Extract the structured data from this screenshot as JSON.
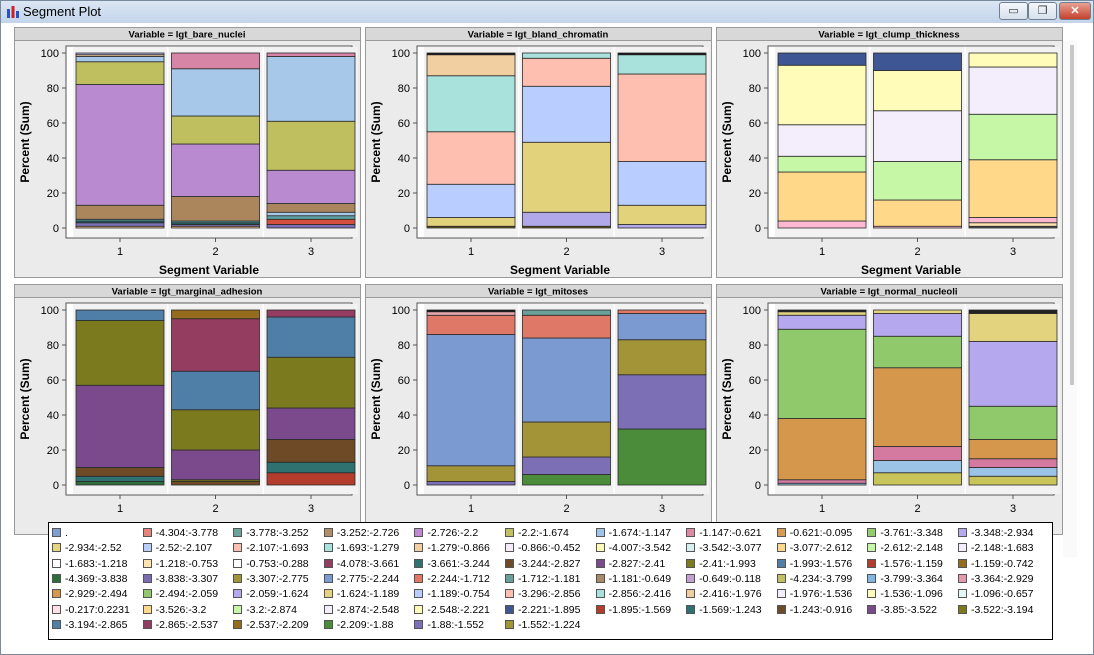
{
  "window": {
    "title": "Segment Plot",
    "buttons": {
      "minimize": "▭",
      "maximize": "❐",
      "close": "✕"
    }
  },
  "chart_data": [
    {
      "type": "bar",
      "stacked": true,
      "title": "Variable = lgt_bare_nuclei",
      "xlabel": "Segment Variable",
      "ylabel": "Percent (Sum)",
      "categories": [
        "1",
        "2",
        "3"
      ],
      "ylim": [
        0,
        100
      ],
      "yticks": [
        0,
        20,
        40,
        60,
        80,
        100
      ],
      "segments": [
        [
          {
            "to": 1,
            "color": "#e7ba8a"
          },
          {
            "to": 3,
            "color": "#7c6fb5"
          },
          {
            "to": 4,
            "color": "#1f6b6b"
          },
          {
            "to": 5,
            "color": "#5da3a6"
          },
          {
            "to": 13,
            "color": "#ab865c"
          },
          {
            "to": 82,
            "color": "#b98acf"
          },
          {
            "to": 95,
            "color": "#bfbf5f"
          },
          {
            "to": 98,
            "color": "#a7c8e8"
          },
          {
            "to": 99,
            "color": "#f0cfa0"
          },
          {
            "to": 100,
            "color": "#b3b3e0"
          }
        ],
        [
          {
            "to": 1,
            "color": "#e7ba8a"
          },
          {
            "to": 2,
            "color": "#7c6fb5"
          },
          {
            "to": 3,
            "color": "#1f6b6b"
          },
          {
            "to": 4,
            "color": "#5da3a6"
          },
          {
            "to": 18,
            "color": "#ab865c"
          },
          {
            "to": 48,
            "color": "#b98acf"
          },
          {
            "to": 64,
            "color": "#bfbf5f"
          },
          {
            "to": 91,
            "color": "#a7c8e8"
          },
          {
            "to": 100,
            "color": "#d785a6"
          }
        ],
        [
          {
            "to": 2,
            "color": "#7c6fb5"
          },
          {
            "to": 5,
            "color": "#d64f3e"
          },
          {
            "to": 7,
            "color": "#5da3a6"
          },
          {
            "to": 9,
            "color": "#a7c8e8"
          },
          {
            "to": 14,
            "color": "#ab865c"
          },
          {
            "to": 33,
            "color": "#b98acf"
          },
          {
            "to": 61,
            "color": "#bfbf5f"
          },
          {
            "to": 98,
            "color": "#a7c8e8"
          },
          {
            "to": 100,
            "color": "#d785a6"
          }
        ]
      ]
    },
    {
      "type": "bar",
      "stacked": true,
      "title": "Variable = lgt_bland_chromatin",
      "xlabel": "Segment Variable",
      "ylabel": "Percent (Sum)",
      "categories": [
        "1",
        "2",
        "3"
      ],
      "ylim": [
        0,
        100
      ],
      "yticks": [
        0,
        20,
        40,
        60,
        80,
        100
      ],
      "segments": [
        [
          {
            "to": 1,
            "color": "#6a5a1a"
          },
          {
            "to": 6,
            "color": "#e2d27c"
          },
          {
            "to": 25,
            "color": "#b9ceff"
          },
          {
            "to": 55,
            "color": "#ffbfb0"
          },
          {
            "to": 87,
            "color": "#a9e2dd"
          },
          {
            "to": 99,
            "color": "#f1cfa0"
          },
          {
            "to": 100,
            "color": "#111111"
          }
        ],
        [
          {
            "to": 1,
            "color": "#6a5a1a"
          },
          {
            "to": 9,
            "color": "#b0a8e8"
          },
          {
            "to": 49,
            "color": "#e2d27c"
          },
          {
            "to": 81,
            "color": "#b9ceff"
          },
          {
            "to": 97,
            "color": "#ffbfb0"
          },
          {
            "to": 100,
            "color": "#a9e2dd"
          }
        ],
        [
          {
            "to": 2,
            "color": "#b0a8e8"
          },
          {
            "to": 13,
            "color": "#e2d27c"
          },
          {
            "to": 38,
            "color": "#b9ceff"
          },
          {
            "to": 88,
            "color": "#ffbfb0"
          },
          {
            "to": 99,
            "color": "#a9e2dd"
          },
          {
            "to": 100,
            "color": "#111111"
          }
        ]
      ]
    },
    {
      "type": "bar",
      "stacked": true,
      "title": "Variable = lgt_clump_thickness",
      "xlabel": "Segment Variable",
      "ylabel": "Percent (Sum)",
      "categories": [
        "1",
        "2",
        "3"
      ],
      "ylim": [
        0,
        100
      ],
      "yticks": [
        0,
        20,
        40,
        60,
        80,
        100
      ],
      "segments": [
        [
          {
            "to": 4,
            "color": "#ffb8d2"
          },
          {
            "to": 32,
            "color": "#ffd88a"
          },
          {
            "to": 41,
            "color": "#c6f7a7"
          },
          {
            "to": 59,
            "color": "#f4eefc"
          },
          {
            "to": 93,
            "color": "#fffbb8"
          },
          {
            "to": 100,
            "color": "#3e5694"
          }
        ],
        [
          {
            "to": 1,
            "color": "#ffb8d2"
          },
          {
            "to": 16,
            "color": "#ffd88a"
          },
          {
            "to": 38,
            "color": "#c6f7a7"
          },
          {
            "to": 67,
            "color": "#f4eefc"
          },
          {
            "to": 90,
            "color": "#fffbb8"
          },
          {
            "to": 100,
            "color": "#3e5694"
          }
        ],
        [
          {
            "to": 1,
            "color": "#555555"
          },
          {
            "to": 3,
            "color": "#ffe4b0"
          },
          {
            "to": 6,
            "color": "#ffb8d2"
          },
          {
            "to": 39,
            "color": "#ffd88a"
          },
          {
            "to": 65,
            "color": "#c6f7a7"
          },
          {
            "to": 92,
            "color": "#f4eefc"
          },
          {
            "to": 100,
            "color": "#fffbb8"
          }
        ]
      ]
    },
    {
      "type": "bar",
      "stacked": true,
      "title": "Variable = lgt_marginal_adhesion",
      "xlabel": "Segment Variable",
      "ylabel": "Percent (Sum)",
      "categories": [
        "1",
        "2",
        "3"
      ],
      "ylim": [
        0,
        100
      ],
      "yticks": [
        0,
        20,
        40,
        60,
        80,
        100
      ],
      "segments": [
        [
          {
            "to": 2,
            "color": "#2d6e3c"
          },
          {
            "to": 5,
            "color": "#2f7070"
          },
          {
            "to": 10,
            "color": "#6e4a26"
          },
          {
            "to": 57,
            "color": "#7b4a8c"
          },
          {
            "to": 94,
            "color": "#7c7a1e"
          },
          {
            "to": 100,
            "color": "#4f7ea6"
          }
        ],
        [
          {
            "to": 2,
            "color": "#6e4a26"
          },
          {
            "to": 3,
            "color": "#7c7a1e"
          },
          {
            "to": 20,
            "color": "#7b4a8c"
          },
          {
            "to": 43,
            "color": "#7c7a1e"
          },
          {
            "to": 65,
            "color": "#4f7ea6"
          },
          {
            "to": 95,
            "color": "#953d60"
          },
          {
            "to": 100,
            "color": "#956b1d"
          }
        ],
        [
          {
            "to": 7,
            "color": "#b33c2c"
          },
          {
            "to": 13,
            "color": "#2f7070"
          },
          {
            "to": 26,
            "color": "#6e4a26"
          },
          {
            "to": 44,
            "color": "#7b4a8c"
          },
          {
            "to": 73,
            "color": "#7c7a1e"
          },
          {
            "to": 96,
            "color": "#4f7ea6"
          },
          {
            "to": 100,
            "color": "#953d60"
          }
        ]
      ]
    },
    {
      "type": "bar",
      "stacked": true,
      "title": "Variable = lgt_mitoses",
      "xlabel": "Segment Variable",
      "ylabel": "Percent (Sum)",
      "categories": [
        "1",
        "2",
        "3"
      ],
      "ylim": [
        0,
        100
      ],
      "yticks": [
        0,
        20,
        40,
        60,
        80,
        100
      ],
      "segments": [
        [
          {
            "to": 2,
            "color": "#7c6fb5"
          },
          {
            "to": 11,
            "color": "#a39438"
          },
          {
            "to": 86,
            "color": "#7c9ad2"
          },
          {
            "to": 97,
            "color": "#e07868"
          },
          {
            "to": 99,
            "color": "#e8a8b0"
          },
          {
            "to": 100,
            "color": "#111111"
          }
        ],
        [
          {
            "to": 6,
            "color": "#4a8c3a"
          },
          {
            "to": 16,
            "color": "#7c6fb5"
          },
          {
            "to": 36,
            "color": "#a39438"
          },
          {
            "to": 84,
            "color": "#7c9ad2"
          },
          {
            "to": 97,
            "color": "#e07868"
          },
          {
            "to": 100,
            "color": "#6aa09a"
          }
        ],
        [
          {
            "to": 32,
            "color": "#4a8c3a"
          },
          {
            "to": 63,
            "color": "#7c6fb5"
          },
          {
            "to": 83,
            "color": "#a39438"
          },
          {
            "to": 98,
            "color": "#7c9ad2"
          },
          {
            "to": 100,
            "color": "#e07868"
          }
        ]
      ]
    },
    {
      "type": "bar",
      "stacked": true,
      "title": "Variable = lgt_normal_nucleoli",
      "xlabel": "Segment Variable",
      "ylabel": "Percent (Sum)",
      "categories": [
        "1",
        "2",
        "3"
      ],
      "ylim": [
        0,
        100
      ],
      "yticks": [
        0,
        20,
        40,
        60,
        80,
        100
      ],
      "segments": [
        [
          {
            "to": 1,
            "color": "#9bc3e6"
          },
          {
            "to": 3,
            "color": "#d47aa0"
          },
          {
            "to": 38,
            "color": "#d5974b"
          },
          {
            "to": 89,
            "color": "#8fc96b"
          },
          {
            "to": 97,
            "color": "#b5a8ef"
          },
          {
            "to": 99,
            "color": "#e3d27e"
          },
          {
            "to": 100,
            "color": "#222222"
          }
        ],
        [
          {
            "to": 7,
            "color": "#c8c45a"
          },
          {
            "to": 14,
            "color": "#9bc3e6"
          },
          {
            "to": 22,
            "color": "#d47aa0"
          },
          {
            "to": 67,
            "color": "#d5974b"
          },
          {
            "to": 85,
            "color": "#8fc96b"
          },
          {
            "to": 98,
            "color": "#b5a8ef"
          },
          {
            "to": 100,
            "color": "#e3d27e"
          }
        ],
        [
          {
            "to": 5,
            "color": "#c8c45a"
          },
          {
            "to": 10,
            "color": "#9bc3e6"
          },
          {
            "to": 15,
            "color": "#d47aa0"
          },
          {
            "to": 26,
            "color": "#d5974b"
          },
          {
            "to": 45,
            "color": "#8fc96b"
          },
          {
            "to": 82,
            "color": "#b5a8ef"
          },
          {
            "to": 98,
            "color": "#e3d27e"
          },
          {
            "to": 100,
            "color": "#222222"
          }
        ]
      ]
    }
  ],
  "legend": {
    "items": [
      {
        "label": ".",
        "color": "#7f9fd2"
      },
      {
        "label": "-4.304:-3.778",
        "color": "#e7857a"
      },
      {
        "label": "-3.778:-3.252",
        "color": "#6aa39e"
      },
      {
        "label": "-3.252:-2.726",
        "color": "#b18e6b"
      },
      {
        "label": "-2.726:-2.2",
        "color": "#c08ad3"
      },
      {
        "label": "-2.2:-1.674",
        "color": "#c3c064"
      },
      {
        "label": "-1.674:-1.147",
        "color": "#a0c4e9"
      },
      {
        "label": "-1.147:-0.621",
        "color": "#dd8aa4"
      },
      {
        "label": "-0.621:-0.095",
        "color": "#d89b4f"
      },
      {
        "label": "-3.761:-3.348",
        "color": "#93cd6f"
      },
      {
        "label": "-3.348:-2.934",
        "color": "#b7abf0"
      },
      {
        "label": "-2.934:-2.52",
        "color": "#e6d580"
      },
      {
        "label": "-2.52:-2.107",
        "color": "#b9ceff"
      },
      {
        "label": "-2.107:-1.693",
        "color": "#ffbfb0"
      },
      {
        "label": "-1.693:-1.279",
        "color": "#a9e2dd"
      },
      {
        "label": "-1.279:-0.866",
        "color": "#f1cfa0"
      },
      {
        "label": "-0.866:-0.452",
        "color": "#f7eafa"
      },
      {
        "label": "-4.007:-3.542",
        "color": "#fffbb8"
      },
      {
        "label": "-3.542:-3.077",
        "color": "#d5f0f0"
      },
      {
        "label": "-3.077:-2.612",
        "color": "#ffd88a"
      },
      {
        "label": "-2.612:-2.148",
        "color": "#c6f7a7"
      },
      {
        "label": "-2.148:-1.683",
        "color": "#f4eefc"
      },
      {
        "label": "-1.683:-1.218",
        "color": "#ffffff"
      },
      {
        "label": "-1.218:-0.753",
        "color": "#ffe4b0"
      },
      {
        "label": "-0.753:-0.288",
        "color": "#ffffff"
      },
      {
        "label": "-4.078:-3.661",
        "color": "#953d60"
      },
      {
        "label": "-3.661:-3.244",
        "color": "#2f7070"
      },
      {
        "label": "-3.244:-2.827",
        "color": "#6e4a26"
      },
      {
        "label": "-2.827:-2.41",
        "color": "#7b4a8c"
      },
      {
        "label": "-2.41:-1.993",
        "color": "#7c7a1e"
      },
      {
        "label": "-1.993:-1.576",
        "color": "#4f7ea6"
      },
      {
        "label": "-1.576:-1.159",
        "color": "#b33c2c"
      },
      {
        "label": "-1.159:-0.742",
        "color": "#956b1d"
      },
      {
        "label": "-4.369:-3.838",
        "color": "#2d6e3c"
      },
      {
        "label": "-3.838:-3.307",
        "color": "#7b6bb5"
      },
      {
        "label": "-3.307:-2.775",
        "color": "#a39438"
      },
      {
        "label": "-2.775:-2.244",
        "color": "#7c9ad2"
      },
      {
        "label": "-2.244:-1.712",
        "color": "#e07868"
      },
      {
        "label": "-1.712:-1.181",
        "color": "#6aa09a"
      },
      {
        "label": "-1.181:-0.649",
        "color": "#a8896a"
      },
      {
        "label": "-0.649:-0.118",
        "color": "#c4a0d0"
      },
      {
        "label": "-4.234:-3.799",
        "color": "#c3c064"
      },
      {
        "label": "-3.799:-3.364",
        "color": "#7fb6e2"
      },
      {
        "label": "-3.364:-2.929",
        "color": "#e49aa8"
      },
      {
        "label": "-2.929:-2.494",
        "color": "#d5974b"
      },
      {
        "label": "-2.494:-2.059",
        "color": "#8fc96b"
      },
      {
        "label": "-2.059:-1.624",
        "color": "#b5a8ef"
      },
      {
        "label": "-1.624:-1.189",
        "color": "#e3d27e"
      },
      {
        "label": "-1.189:-0.754",
        "color": "#b9ceff"
      },
      {
        "label": "-3.296:-2.856",
        "color": "#ffbfb0"
      },
      {
        "label": "-2.856:-2.416",
        "color": "#a9e2dd"
      },
      {
        "label": "-2.416:-1.976",
        "color": "#f1cfa0"
      },
      {
        "label": "-1.976:-1.536",
        "color": "#f4eefc"
      },
      {
        "label": "-1.536:-1.096",
        "color": "#fffbb8"
      },
      {
        "label": "-1.096:-0.657",
        "color": "#e6f5f5"
      },
      {
        "label": "-0.217:0.2231",
        "color": "#ffe0e8"
      },
      {
        "label": "-3.526:-3.2",
        "color": "#ffd88a"
      },
      {
        "label": "-3.2:-2.874",
        "color": "#c6f7a7"
      },
      {
        "label": "-2.874:-2.548",
        "color": "#f4eefc"
      },
      {
        "label": "-2.548:-2.221",
        "color": "#fffbb8"
      },
      {
        "label": "-2.221:-1.895",
        "color": "#3e5694"
      },
      {
        "label": "-1.895:-1.569",
        "color": "#b33c2c"
      },
      {
        "label": "-1.569:-1.243",
        "color": "#2f7070"
      },
      {
        "label": "-1.243:-0.916",
        "color": "#6e4a26"
      },
      {
        "label": "-3.85:-3.522",
        "color": "#7b4a8c"
      },
      {
        "label": "-3.522:-3.194",
        "color": "#7c7a1e"
      },
      {
        "label": "-3.194:-2.865",
        "color": "#4f7ea6"
      },
      {
        "label": "-2.865:-2.537",
        "color": "#953d60"
      },
      {
        "label": "-2.537:-2.209",
        "color": "#956b1d"
      },
      {
        "label": "-2.209:-1.88",
        "color": "#4a8c3a"
      },
      {
        "label": "-1.88:-1.552",
        "color": "#7c6fb5"
      },
      {
        "label": "-1.552:-1.224",
        "color": "#a39438"
      }
    ]
  }
}
